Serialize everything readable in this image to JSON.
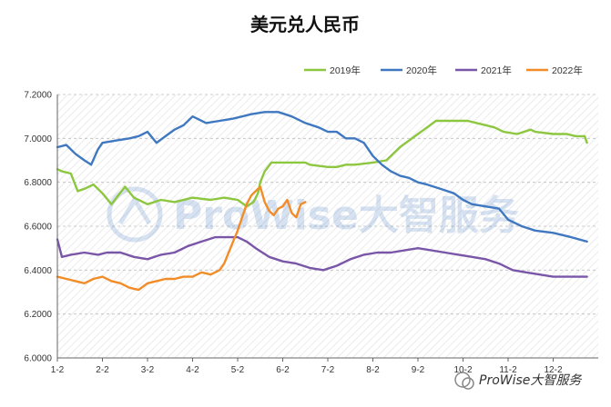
{
  "chart_data": {
    "type": "line",
    "title": "美元兑人民币",
    "xlabel": "",
    "ylabel": "",
    "ylim": [
      6.0,
      7.2
    ],
    "y_ticks": [
      6.0,
      6.2,
      6.4,
      6.6,
      6.8,
      7.0,
      7.2
    ],
    "y_tick_labels": [
      "6.0000",
      "6.2000",
      "6.4000",
      "6.6000",
      "6.8000",
      "7.0000",
      "7.2000"
    ],
    "x_tick_labels": [
      "1-2",
      "2-2",
      "3-2",
      "4-2",
      "5-2",
      "6-2",
      "7-2",
      "8-2",
      "9-2",
      "10-2",
      "11-2",
      "12-2"
    ],
    "grid": "horizontal dashed",
    "legend_position": "top-right",
    "colors": {
      "2019年": "#8dc63f",
      "2020年": "#3f78c0",
      "2021年": "#7a56a8",
      "2022年": "#f28c28"
    },
    "series": [
      {
        "name": "2019年",
        "color": "#8dc63f",
        "x": [
          0,
          0.1,
          0.3,
          0.45,
          0.6,
          0.8,
          1.0,
          1.2,
          1.5,
          1.7,
          2.0,
          2.3,
          2.6,
          3.0,
          3.4,
          3.7,
          4.0,
          4.2,
          4.35,
          4.45,
          4.5,
          4.6,
          4.75,
          5.0,
          5.5,
          5.6,
          6.0,
          6.2,
          6.4,
          6.6,
          7.0,
          7.3,
          7.6,
          8.0,
          8.2,
          8.4,
          8.6,
          8.8,
          9.0,
          9.1,
          9.3,
          9.5,
          9.7,
          9.9,
          10.2,
          10.5,
          10.6,
          11.0,
          11.3,
          11.5,
          11.7,
          11.75
        ],
        "y": [
          6.86,
          6.85,
          6.84,
          6.76,
          6.77,
          6.79,
          6.75,
          6.7,
          6.78,
          6.73,
          6.7,
          6.72,
          6.71,
          6.73,
          6.72,
          6.73,
          6.72,
          6.69,
          6.71,
          6.75,
          6.8,
          6.85,
          6.89,
          6.89,
          6.89,
          6.88,
          6.87,
          6.87,
          6.88,
          6.88,
          6.89,
          6.9,
          6.96,
          7.02,
          7.05,
          7.08,
          7.08,
          7.08,
          7.08,
          7.08,
          7.07,
          7.06,
          7.05,
          7.03,
          7.02,
          7.04,
          7.03,
          7.02,
          7.02,
          7.01,
          7.01,
          6.98
        ]
      },
      {
        "name": "2020年",
        "color": "#3f78c0",
        "x": [
          0,
          0.2,
          0.4,
          0.6,
          0.75,
          0.9,
          1.0,
          1.3,
          1.6,
          1.8,
          2.0,
          2.2,
          2.4,
          2.6,
          2.8,
          3.0,
          3.1,
          3.3,
          3.6,
          3.9,
          4.1,
          4.3,
          4.6,
          4.9,
          5.2,
          5.5,
          5.8,
          6.0,
          6.2,
          6.4,
          6.6,
          6.8,
          7.0,
          7.2,
          7.4,
          7.6,
          7.8,
          8.0,
          8.2,
          8.5,
          8.8,
          9.0,
          9.2,
          9.5,
          9.8,
          10.0,
          10.3,
          10.6,
          11.0,
          11.4,
          11.75
        ],
        "y": [
          6.96,
          6.97,
          6.93,
          6.9,
          6.88,
          6.95,
          6.98,
          6.99,
          7.0,
          7.01,
          7.03,
          6.98,
          7.01,
          7.04,
          7.06,
          7.1,
          7.09,
          7.07,
          7.08,
          7.09,
          7.1,
          7.11,
          7.12,
          7.12,
          7.1,
          7.07,
          7.05,
          7.03,
          7.03,
          7.0,
          7.0,
          6.98,
          6.92,
          6.88,
          6.85,
          6.83,
          6.82,
          6.8,
          6.79,
          6.77,
          6.75,
          6.72,
          6.7,
          6.69,
          6.68,
          6.63,
          6.6,
          6.58,
          6.57,
          6.55,
          6.53
        ]
      },
      {
        "name": "2021年",
        "color": "#7a56a8",
        "x": [
          0,
          0.1,
          0.3,
          0.6,
          0.9,
          1.1,
          1.4,
          1.7,
          2.0,
          2.3,
          2.6,
          2.9,
          3.2,
          3.5,
          3.8,
          4.0,
          4.2,
          4.4,
          4.7,
          5.0,
          5.3,
          5.6,
          5.9,
          6.2,
          6.5,
          6.8,
          7.1,
          7.4,
          7.7,
          8.0,
          8.3,
          8.6,
          8.9,
          9.2,
          9.5,
          9.8,
          10.1,
          10.4,
          10.7,
          11.0,
          11.3,
          11.6,
          11.75
        ],
        "y": [
          6.54,
          6.46,
          6.47,
          6.48,
          6.47,
          6.48,
          6.48,
          6.46,
          6.45,
          6.47,
          6.48,
          6.51,
          6.53,
          6.55,
          6.55,
          6.55,
          6.53,
          6.5,
          6.46,
          6.44,
          6.43,
          6.41,
          6.4,
          6.42,
          6.45,
          6.47,
          6.48,
          6.48,
          6.49,
          6.5,
          6.49,
          6.48,
          6.47,
          6.46,
          6.45,
          6.43,
          6.4,
          6.39,
          6.38,
          6.37,
          6.37,
          6.37,
          6.37
        ]
      },
      {
        "name": "2022年",
        "color": "#f28c28",
        "x": [
          0,
          0.2,
          0.4,
          0.6,
          0.8,
          1.0,
          1.2,
          1.4,
          1.6,
          1.8,
          2.0,
          2.2,
          2.4,
          2.6,
          2.8,
          3.0,
          3.2,
          3.4,
          3.6,
          3.7,
          3.8,
          3.9,
          4.0,
          4.1,
          4.2,
          4.3,
          4.4,
          4.5,
          4.6,
          4.7,
          4.8,
          4.9,
          5.0,
          5.1,
          5.2,
          5.3,
          5.4,
          5.5
        ],
        "y": [
          6.37,
          6.36,
          6.35,
          6.34,
          6.36,
          6.37,
          6.35,
          6.34,
          6.32,
          6.31,
          6.34,
          6.35,
          6.36,
          6.36,
          6.37,
          6.37,
          6.39,
          6.38,
          6.4,
          6.43,
          6.48,
          6.53,
          6.58,
          6.64,
          6.7,
          6.74,
          6.76,
          6.78,
          6.71,
          6.67,
          6.65,
          6.68,
          6.69,
          6.72,
          6.66,
          6.64,
          6.7,
          6.71
        ]
      }
    ]
  },
  "watermark": {
    "text": "ProWise大智服务",
    "footer_text": "ProWise大智服务"
  }
}
